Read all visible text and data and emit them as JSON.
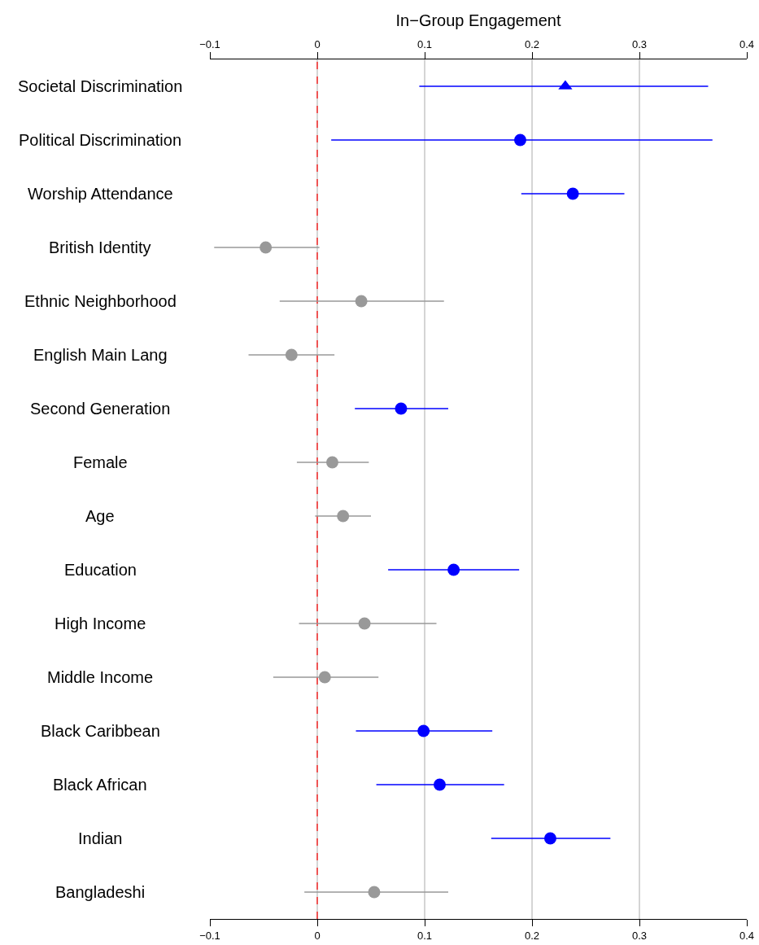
{
  "chart_data": {
    "type": "scatter",
    "orientation": "horizontal",
    "x2label": "In−Group Engagement",
    "categories": [
      "Societal Discrimination",
      "Political Discrimination",
      "Worship Attendance",
      "British Identity",
      "Ethnic Neighborhood",
      "English Main Lang",
      "Second Generation",
      "Female",
      "Age",
      "Education",
      "High Income",
      "Middle Income",
      "Black Caribbean",
      "Black African",
      "Indian",
      "Bangladeshi"
    ],
    "series": [
      {
        "marker": "triangle",
        "color": "#0000ff",
        "values": [
          0.231,
          null,
          null,
          null,
          null,
          null,
          null,
          null,
          null,
          null,
          null,
          null,
          null,
          null,
          null,
          null
        ],
        "errors": [
          [
            0.095,
            0.364
          ],
          null,
          null,
          null,
          null,
          null,
          null,
          null,
          null,
          null,
          null,
          null,
          null,
          null,
          null,
          null
        ]
      },
      {
        "marker": "circle",
        "color": "#0000ff",
        "values": [
          null,
          0.189,
          0.238,
          null,
          null,
          null,
          0.078,
          null,
          null,
          0.127,
          null,
          null,
          0.099,
          0.114,
          0.217,
          null
        ],
        "errors": [
          null,
          [
            0.013,
            0.368
          ],
          [
            0.19,
            0.286
          ],
          null,
          null,
          null,
          [
            0.035,
            0.122
          ],
          null,
          null,
          [
            0.066,
            0.188
          ],
          null,
          null,
          [
            0.036,
            0.163
          ],
          [
            0.055,
            0.174
          ],
          [
            0.162,
            0.273
          ],
          null
        ]
      },
      {
        "marker": "circle",
        "color": "#999999",
        "values": [
          null,
          null,
          null,
          -0.048,
          0.041,
          -0.024,
          null,
          0.014,
          0.024,
          null,
          0.044,
          0.007,
          null,
          null,
          null,
          0.053
        ],
        "errors": [
          null,
          null,
          null,
          [
            -0.096,
            0.002
          ],
          [
            -0.035,
            0.118
          ],
          [
            -0.064,
            0.016
          ],
          null,
          [
            -0.019,
            0.048
          ],
          [
            -0.002,
            0.05
          ],
          null,
          [
            -0.017,
            0.111
          ],
          [
            -0.041,
            0.057
          ],
          null,
          null,
          null,
          [
            -0.012,
            0.122
          ]
        ]
      }
    ],
    "xlim": [
      -0.1,
      0.4
    ],
    "xticks": [
      {
        "value": -0.1,
        "label": "−0.1"
      },
      0,
      0.1,
      0.2,
      0.3,
      0.4
    ],
    "x2lim": [
      -0.1,
      0.4
    ],
    "x2ticks": [
      {
        "value": -0.1,
        "label": "−0.1"
      },
      0,
      0.1,
      0.2,
      0.3,
      0.4
    ],
    "grid": "x",
    "ref_lines": [
      {
        "axis": "x",
        "value": 0,
        "color": "#ff0000",
        "line_style": "dashed"
      }
    ]
  }
}
